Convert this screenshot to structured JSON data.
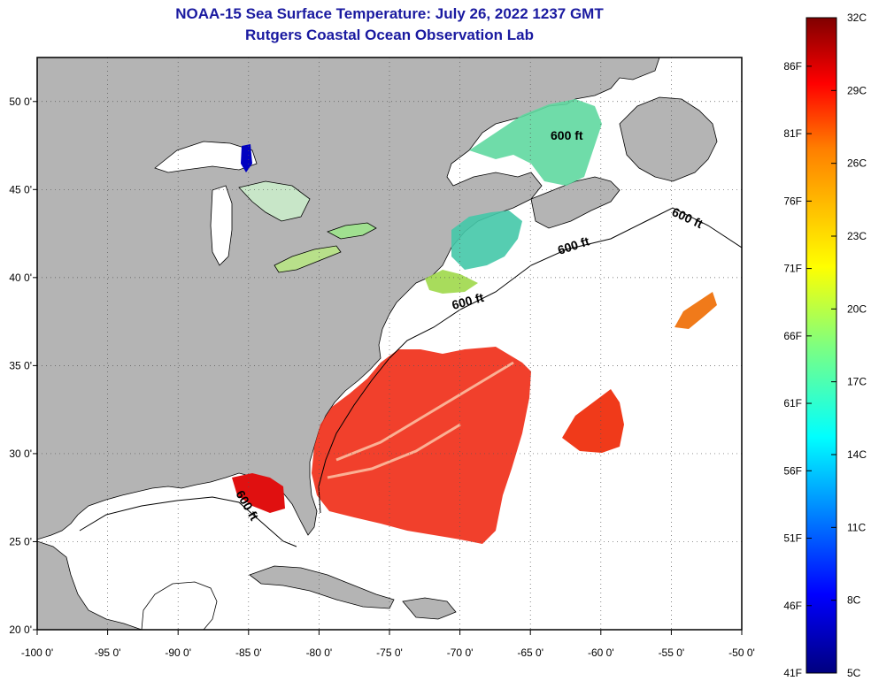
{
  "header": {
    "title": "NOAA-15 Sea Surface Temperature:  July 26, 2022 1237 GMT",
    "subtitle": "Rutgers Coastal Ocean Observation Lab"
  },
  "map": {
    "lon_range": [
      -100,
      -50
    ],
    "lat_range": [
      20,
      52.5
    ],
    "lon_ticks": [
      "-100 0'",
      "-95 0'",
      "-90 0'",
      "-85 0'",
      "-80 0'",
      "-75 0'",
      "-70 0'",
      "-65 0'",
      "-60 0'",
      "-55 0'",
      "-50 0'"
    ],
    "lat_ticks": [
      {
        "lat": 50,
        "label": "50 0'"
      },
      {
        "lat": 45,
        "label": "45 0'"
      },
      {
        "lat": 40,
        "label": "40 0'"
      },
      {
        "lat": 35,
        "label": "35 0'"
      },
      {
        "lat": 30,
        "label": "30 0'"
      },
      {
        "lat": 25,
        "label": "25 0'"
      },
      {
        "lat": 20,
        "label": "20 0'"
      }
    ],
    "contour_labels": [
      "600 ft",
      "600 ft",
      "600 ft",
      "600 ft",
      "600 ft"
    ],
    "land_color": "#b4b4b4",
    "ocean_color": "#ffffff",
    "grid": "dotted"
  },
  "colorbar": {
    "fahrenheit": [
      "86F",
      "81F",
      "76F",
      "71F",
      "66F",
      "61F",
      "56F",
      "51F",
      "46F",
      "41F"
    ],
    "celsius": [
      "32C",
      "29C",
      "26C",
      "23C",
      "20C",
      "17C",
      "14C",
      "11C",
      "8C",
      "5C"
    ],
    "min_c": 5,
    "max_c": 32
  }
}
